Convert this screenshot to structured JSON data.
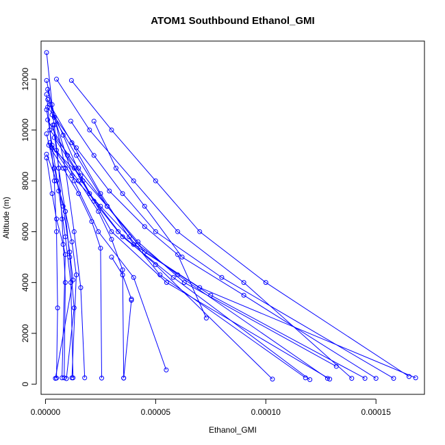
{
  "chart_data": {
    "type": "line",
    "title": "ATOM1 Southbound Ethanol_GMI",
    "xlabel": "Ethanol_GMI",
    "ylabel": "Altitude (m)",
    "xlim": [
      -2e-06,
      0.000172
    ],
    "ylim": [
      -400,
      13500
    ],
    "x_ticks": [
      0.0,
      5e-05,
      0.0001,
      0.00015
    ],
    "x_tick_labels": [
      "0.00000",
      "0.00005",
      "0.00010",
      "0.00015"
    ],
    "y_ticks": [
      0,
      2000,
      4000,
      6000,
      8000,
      10000,
      12000
    ],
    "y_tick_labels": [
      "0",
      "2000",
      "4000",
      "6000",
      "8000",
      "10000",
      "12000"
    ],
    "grid": false,
    "legend": "none",
    "series_color": "#0000ff",
    "point_style": "open-circle",
    "series": [
      {
        "points": [
          [
            5e-07,
            13050
          ],
          [
            3e-06,
            11000
          ],
          [
            9e-06,
            8500
          ],
          [
            1.3e-05,
            6000
          ],
          [
            1.6e-05,
            3800
          ],
          [
            1.78e-05,
            250
          ]
        ]
      },
      {
        "points": [
          [
            5e-07,
            11950
          ],
          [
            4e-06,
            10500
          ],
          [
            1.3e-05,
            8000
          ],
          [
            2.4e-05,
            6000
          ],
          [
            4e-05,
            4200
          ],
          [
            5.48e-05,
            560
          ]
        ]
      },
      {
        "points": [
          [
            5e-06,
            12000
          ],
          [
            2e-05,
            10000
          ],
          [
            4e-05,
            8000
          ],
          [
            6e-05,
            6000
          ],
          [
            9e-05,
            4000
          ],
          [
            0.000139,
            230
          ]
        ]
      },
      {
        "points": [
          [
            1.18e-05,
            11950
          ],
          [
            3e-05,
            10000
          ],
          [
            5e-05,
            8000
          ],
          [
            7e-05,
            6000
          ],
          [
            0.0001,
            4000
          ],
          [
            0.000165,
            300
          ]
        ]
      },
      {
        "points": [
          [
            1e-06,
            11600
          ],
          [
            4e-06,
            10200
          ],
          [
            6e-06,
            8500
          ],
          [
            7.5e-06,
            6500
          ],
          [
            9e-06,
            4000
          ],
          [
            8.5e-06,
            250
          ]
        ]
      },
      {
        "points": [
          [
            5e-07,
            11400
          ],
          [
            2e-06,
            10000
          ],
          [
            4e-06,
            8000
          ],
          [
            5e-06,
            6000
          ],
          [
            5.5e-06,
            3000
          ],
          [
            5e-06,
            240
          ]
        ]
      },
      {
        "points": [
          [
            1e-06,
            11200
          ],
          [
            8e-06,
            9800
          ],
          [
            1.7e-05,
            8000
          ],
          [
            3e-05,
            6000
          ],
          [
            5.5e-05,
            4000
          ],
          [
            0.000129,
            200
          ]
        ]
      },
      {
        "points": [
          [
            2e-06,
            11000
          ],
          [
            1.2e-05,
            9500
          ],
          [
            2.5e-05,
            7500
          ],
          [
            4e-05,
            5500
          ],
          [
            7e-05,
            3800
          ],
          [
            0.000168,
            250
          ]
        ]
      },
      {
        "points": [
          [
            5e-07,
            10800
          ],
          [
            3e-06,
            9400
          ],
          [
            6e-06,
            7600
          ],
          [
            9e-06,
            5800
          ],
          [
            1.15e-05,
            4000
          ],
          [
            1.25e-05,
            250
          ]
        ]
      },
      {
        "points": [
          [
            3e-06,
            10600
          ],
          [
            1.4e-05,
            9000
          ],
          [
            2.8e-05,
            7000
          ],
          [
            4.5e-05,
            5200
          ],
          [
            7.5e-05,
            3500
          ],
          [
            0.000145,
            230
          ]
        ]
      },
      {
        "points": [
          [
            1e-06,
            10400
          ],
          [
            1e-05,
            9000
          ],
          [
            2e-05,
            7500
          ],
          [
            3.5e-05,
            5800
          ],
          [
            5.8e-05,
            4200
          ],
          [
            0.00012,
            180
          ]
        ]
      },
      {
        "points": [
          [
            1.15e-05,
            10350
          ],
          [
            2.2e-05,
            9000
          ],
          [
            3.5e-05,
            7500
          ],
          [
            5e-05,
            6000
          ],
          [
            8e-05,
            4200
          ],
          [
            0.000158,
            230
          ]
        ]
      },
      {
        "points": [
          [
            3.5e-06,
            10200
          ],
          [
            6e-06,
            8500
          ],
          [
            9e-06,
            6800
          ],
          [
            1.1e-05,
            5000
          ],
          [
            1.3e-05,
            3000
          ],
          [
            9.5e-06,
            220
          ]
        ]
      },
      {
        "points": [
          [
            2.2e-05,
            10350
          ],
          [
            3.2e-05,
            8500
          ],
          [
            4.5e-05,
            7000
          ],
          [
            6.2e-05,
            5000
          ],
          [
            9e-05,
            3500
          ],
          [
            0.00015,
            230
          ]
        ]
      },
      {
        "points": [
          [
            2e-06,
            10000
          ],
          [
            1.5e-05,
            8500
          ],
          [
            2.8e-05,
            7000
          ],
          [
            4.2e-05,
            5500
          ],
          [
            6e-05,
            4300
          ],
          [
            0.000128,
            230
          ]
        ]
      },
      {
        "points": [
          [
            5e-07,
            9850
          ],
          [
            4e-06,
            8500
          ],
          [
            8e-06,
            7000
          ],
          [
            1.1e-05,
            5200
          ],
          [
            1.25e-05,
            4100
          ],
          [
            4.5e-06,
            230
          ]
        ]
      },
      {
        "points": [
          [
            4e-06,
            9700
          ],
          [
            1.3e-05,
            8500
          ],
          [
            2.2e-05,
            7200
          ],
          [
            3.3e-05,
            6000
          ],
          [
            5e-05,
            4700
          ],
          [
            0.000103,
            200
          ]
        ]
      },
      {
        "points": [
          [
            2e-06,
            9500
          ],
          [
            1.2e-05,
            8200
          ],
          [
            2.5e-05,
            7000
          ],
          [
            3.8e-05,
            5800
          ],
          [
            5.2e-05,
            4300
          ],
          [
            0.000118,
            250
          ]
        ]
      },
      {
        "points": [
          [
            1.5e-06,
            9400
          ],
          [
            8e-06,
            8500
          ],
          [
            1.5e-05,
            7500
          ],
          [
            2.1e-05,
            6400
          ],
          [
            2.5e-05,
            5350
          ],
          [
            2.55e-05,
            240
          ]
        ]
      },
      {
        "points": [
          [
            5e-06,
            9200
          ],
          [
            1.5e-05,
            8000
          ],
          [
            2.4e-05,
            6800
          ],
          [
            3e-05,
            5700
          ],
          [
            3.5e-05,
            4500
          ],
          [
            3.55e-05,
            240
          ]
        ]
      },
      {
        "points": [
          [
            5e-07,
            9050
          ],
          [
            5e-06,
            8000
          ],
          [
            9e-06,
            6800
          ],
          [
            1.2e-05,
            5600
          ],
          [
            1.4e-05,
            4300
          ],
          [
            1.2e-05,
            250
          ]
        ]
      },
      {
        "points": [
          [
            5e-07,
            8900
          ],
          [
            3e-06,
            7500
          ],
          [
            5e-06,
            6500
          ],
          [
            8e-06,
            5500
          ],
          [
            9e-06,
            5100
          ],
          [
            7.5e-06,
            250
          ]
        ]
      },
      {
        "points": [
          [
            3e-06,
            9300
          ],
          [
            1.6e-05,
            8200
          ],
          [
            2.8e-05,
            7000
          ],
          [
            4.2e-05,
            5600
          ],
          [
            6.3e-05,
            4000
          ],
          [
            0.000132,
            700
          ]
        ]
      },
      {
        "points": [
          [
            1e-06,
            10900
          ],
          [
            1.4e-05,
            9300
          ],
          [
            2.9e-05,
            7600
          ],
          [
            4.5e-05,
            6200
          ],
          [
            6e-05,
            5100
          ],
          [
            7.3e-05,
            2600
          ]
        ]
      },
      {
        "points": [
          [
            3.55e-05,
            240
          ],
          [
            3.9e-05,
            3300
          ]
        ]
      },
      {
        "points": [
          [
            3.9e-05,
            3350
          ],
          [
            3.5e-05,
            4300
          ],
          [
            3e-05,
            5000
          ]
        ]
      }
    ]
  }
}
